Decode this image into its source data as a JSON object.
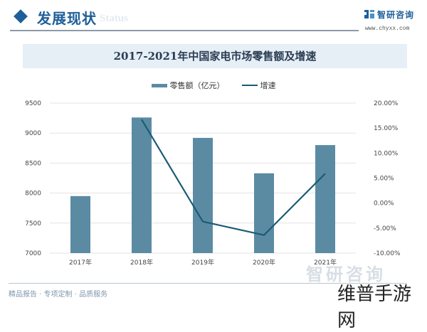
{
  "header": {
    "section_title": "发展现状",
    "section_subtitle": "Status",
    "logo_name": "智研咨询",
    "logo_url": "www.chyxx.com"
  },
  "footer": {
    "tagline": "精品报告 · 专项定制 · 品质服务",
    "badge": "维普手游网",
    "watermark": "智研咨询"
  },
  "colors": {
    "bar": "#5b8ba3",
    "line": "#1b5c74",
    "title_band": "#e6eef6",
    "accent": "#1f5f99"
  },
  "chart_data": {
    "type": "bar",
    "title": "2017-2021年中国家电市场零售额及增速",
    "categories": [
      "2017年",
      "2018年",
      "2019年",
      "2020年",
      "2021年"
    ],
    "series": [
      {
        "name": "零售额（亿元）",
        "type": "bar",
        "axis": "left",
        "values": [
          7950,
          9260,
          8920,
          8330,
          8800
        ]
      },
      {
        "name": "增速",
        "type": "line",
        "axis": "right",
        "values": [
          null,
          16.7,
          -3.7,
          -6.4,
          5.9
        ],
        "unit": "%"
      }
    ],
    "left_axis": {
      "min": 7000,
      "max": 9500,
      "step": 500,
      "ticks": [
        "9500",
        "9000",
        "8500",
        "8000",
        "7500",
        "7000"
      ]
    },
    "right_axis": {
      "min": -10,
      "max": 20,
      "step": 5,
      "ticks": [
        "20.00%",
        "15.00%",
        "10.00%",
        "5.00%",
        "0.00%",
        "-5.00%",
        "-10.00%"
      ]
    },
    "xlabel": "",
    "ylabel": "",
    "legend_position": "top",
    "grid": true
  }
}
